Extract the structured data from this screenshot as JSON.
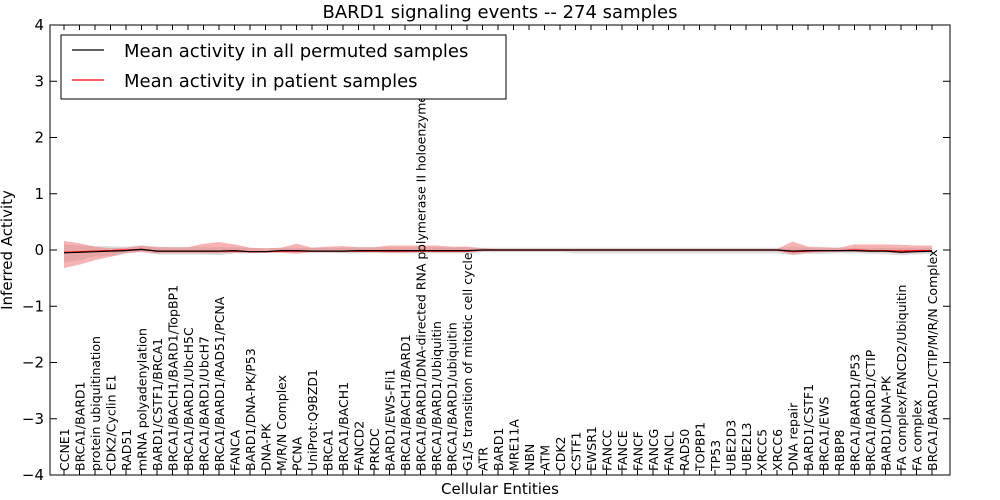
{
  "chart_data": {
    "type": "line",
    "title": "BARD1 signaling events -- 274 samples",
    "xlabel": "Cellular Entities",
    "ylabel": "Inferred Activity",
    "ylim": [
      -4,
      4
    ],
    "yticks": [
      "−4",
      "−3",
      "−2",
      "−1",
      "0",
      "1",
      "2",
      "3",
      "4"
    ],
    "grid": false,
    "legend_position": "top-left",
    "colors": {
      "permuted": "#000000",
      "patient": "#ff0000",
      "permuted_band": "#bfbfbf",
      "patient_band": "#f08080"
    },
    "categories": [
      "CCNE1",
      "BRCA1/BARD1",
      "protein ubiquitination",
      "CDK2/Cyclin E1",
      "RAD51",
      "mRNA polyadenylation",
      "BARD1/CSTF1/BRCA1",
      "BRCA1/BACH1/BARD1/TopBP1",
      "BRCA1/BARD1/UbcH5C",
      "BRCA1/BARD1/UbcH7",
      "BRCA1/BARD1/RAD51/PCNA",
      "FANCA",
      "BARD1/DNA-PK/P53",
      "DNA-PK",
      "M/R/N Complex",
      "PCNA",
      "UniProt:Q9BZD1",
      "BRCA1",
      "BRCA1/BACH1",
      "FANCD2",
      "PRKDC",
      "BARD1/EWS-Fli1",
      "BRCA1/BACH1/BARD1",
      "BRCA1/BARD1/DNA-directed RNA polymerase II holoenzyme",
      "BRCA1/BARD1/Ubiquitin",
      "BRCA1/BARD1/ubiquitin",
      "G1/S transition of mitotic cell cycle",
      "ATR",
      "BARD1",
      "MRE11A",
      "NBN",
      "ATM",
      "CDK2",
      "CSTF1",
      "EWSR1",
      "FANCC",
      "FANCE",
      "FANCF",
      "FANCG",
      "FANCL",
      "RAD50",
      "TOPBP1",
      "TP53",
      "UBE2D3",
      "UBE2L3",
      "XRCC5",
      "XRCC6",
      "DNA repair",
      "BARD1/CSTF1",
      "BRCA1/EWS",
      "RBBP8",
      "BRCA1/BARD1/P53",
      "BRCA1/BARD1/CTIP",
      "BARD1/DNA-PK",
      "FA complex/FANCD2/Ubiquitin",
      "FA complex",
      "BRCA1/BARD1/CTIP/M/R/N Complex"
    ],
    "series": [
      {
        "name": "Mean activity in all permuted samples",
        "values": [
          -0.05,
          -0.04,
          -0.03,
          -0.02,
          -0.01,
          0.01,
          -0.02,
          -0.02,
          -0.02,
          -0.02,
          -0.02,
          -0.01,
          -0.03,
          -0.03,
          -0.01,
          -0.01,
          -0.02,
          -0.02,
          -0.02,
          -0.01,
          -0.01,
          -0.01,
          -0.01,
          -0.01,
          -0.01,
          -0.01,
          -0.01,
          0,
          0,
          0,
          0,
          0,
          0,
          0,
          0,
          0,
          0,
          0,
          0,
          0,
          0,
          0,
          0,
          0,
          0,
          0,
          0,
          -0.02,
          -0.01,
          -0.01,
          -0.01,
          -0.01,
          -0.02,
          -0.02,
          -0.04,
          -0.03,
          -0.02
        ],
        "lower": [
          -0.22,
          -0.18,
          -0.12,
          -0.1,
          -0.05,
          -0.04,
          -0.08,
          -0.08,
          -0.08,
          -0.08,
          -0.09,
          -0.06,
          -0.06,
          -0.05,
          -0.05,
          -0.05,
          -0.05,
          -0.05,
          -0.06,
          -0.06,
          -0.05,
          -0.06,
          -0.06,
          -0.06,
          -0.06,
          -0.06,
          -0.06,
          -0.04,
          -0.04,
          -0.04,
          -0.04,
          -0.04,
          -0.04,
          -0.06,
          -0.06,
          -0.06,
          -0.06,
          -0.06,
          -0.06,
          -0.06,
          -0.06,
          -0.06,
          -0.06,
          -0.06,
          -0.06,
          -0.06,
          -0.06,
          -0.09,
          -0.07,
          -0.07,
          -0.06,
          -0.06,
          -0.07,
          -0.08,
          -0.09,
          -0.08,
          -0.07
        ],
        "upper": [
          0.1,
          0.08,
          0.07,
          0.07,
          0.06,
          0.08,
          0.06,
          0.05,
          0.05,
          0.05,
          0.05,
          0.05,
          0.04,
          0.03,
          0.04,
          0.04,
          0.04,
          0.04,
          0.04,
          0.05,
          0.05,
          0.05,
          0.05,
          0.05,
          0.05,
          0.05,
          0.05,
          0.04,
          0.04,
          0.04,
          0.04,
          0.04,
          0.04,
          0.04,
          0.04,
          0.04,
          0.04,
          0.04,
          0.04,
          0.04,
          0.04,
          0.04,
          0.04,
          0.04,
          0.04,
          0.04,
          0.04,
          0.05,
          0.04,
          0.04,
          0.04,
          0.04,
          0.04,
          0.04,
          0.04,
          0.04,
          0.04
        ]
      },
      {
        "name": "Mean activity in patient samples",
        "values": [
          -0.04,
          -0.03,
          -0.02,
          -0.01,
          0,
          0.01,
          -0.02,
          -0.02,
          -0.02,
          -0.02,
          -0.02,
          -0.02,
          -0.03,
          -0.03,
          -0.02,
          -0.02,
          -0.02,
          -0.02,
          -0.02,
          -0.02,
          -0.02,
          -0.02,
          -0.02,
          -0.02,
          -0.02,
          -0.02,
          -0.02,
          0,
          0,
          0,
          0,
          0,
          0,
          0,
          0,
          0,
          0,
          0,
          0,
          0,
          0,
          0,
          0,
          0,
          0,
          0,
          0,
          -0.03,
          -0.02,
          -0.01,
          -0.01,
          0,
          -0.01,
          -0.01,
          -0.02,
          -0.01,
          -0.01
        ],
        "lower": [
          -0.32,
          -0.26,
          -0.18,
          -0.12,
          -0.06,
          -0.03,
          -0.06,
          -0.06,
          -0.06,
          -0.06,
          -0.06,
          -0.05,
          -0.05,
          -0.05,
          -0.05,
          -0.07,
          -0.04,
          -0.04,
          -0.04,
          -0.04,
          -0.04,
          -0.05,
          -0.05,
          -0.04,
          -0.04,
          -0.04,
          -0.04,
          -0.02,
          -0.02,
          -0.02,
          -0.02,
          -0.02,
          -0.02,
          -0.02,
          -0.02,
          -0.02,
          -0.02,
          -0.02,
          -0.02,
          -0.02,
          -0.02,
          -0.02,
          -0.02,
          -0.02,
          -0.02,
          -0.02,
          -0.02,
          -0.08,
          -0.05,
          -0.04,
          -0.03,
          -0.03,
          -0.04,
          -0.04,
          -0.06,
          -0.04,
          -0.04
        ],
        "upper": [
          0.16,
          0.12,
          0.06,
          0.03,
          0.04,
          0.08,
          0.05,
          0.05,
          0.05,
          0.11,
          0.14,
          0.1,
          0.04,
          0.03,
          0.04,
          0.11,
          0.04,
          0.06,
          0.07,
          0.05,
          0.05,
          0.08,
          0.08,
          0.08,
          0.08,
          0.06,
          0.06,
          0.03,
          0.02,
          0.02,
          0.02,
          0.02,
          0.02,
          0.02,
          0.02,
          0.02,
          0.02,
          0.02,
          0.02,
          0.02,
          0.02,
          0.02,
          0.02,
          0.02,
          0.02,
          0.02,
          0.02,
          0.15,
          0.06,
          0.05,
          0.04,
          0.1,
          0.1,
          0.1,
          0.09,
          0.08,
          0.08
        ]
      }
    ]
  }
}
